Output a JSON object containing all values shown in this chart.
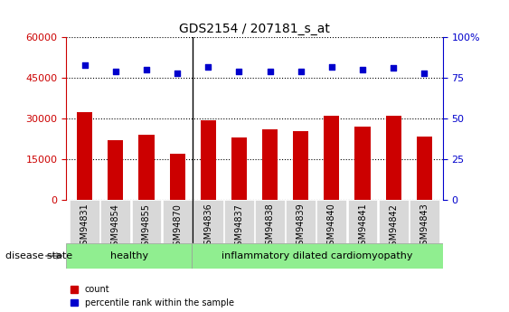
{
  "title": "GDS2154 / 207181_s_at",
  "samples": [
    "GSM94831",
    "GSM94854",
    "GSM94855",
    "GSM94870",
    "GSM94836",
    "GSM94837",
    "GSM94838",
    "GSM94839",
    "GSM94840",
    "GSM94841",
    "GSM94842",
    "GSM94843"
  ],
  "counts": [
    32500,
    22000,
    24000,
    17000,
    29500,
    23000,
    26000,
    25500,
    31000,
    27000,
    31000,
    23500
  ],
  "percentiles": [
    83,
    79,
    80,
    78,
    82,
    79,
    79,
    79,
    82,
    80,
    81,
    78
  ],
  "bar_color": "#cc0000",
  "dot_color": "#0000cc",
  "n_healthy": 4,
  "n_disease": 8,
  "healthy_label": "healthy",
  "disease_label": "inflammatory dilated cardiomyopathy",
  "disease_state_label": "disease state",
  "legend_count": "count",
  "legend_pct": "percentile rank within the sample",
  "left_ylim": [
    0,
    60000
  ],
  "left_yticks": [
    0,
    15000,
    30000,
    45000,
    60000
  ],
  "right_ylim": [
    0,
    100
  ],
  "right_yticks": [
    0,
    25,
    50,
    75,
    100
  ],
  "left_color": "#cc0000",
  "right_color": "#0000cc",
  "plot_bg": "#ffffff",
  "grid_color": "#000000",
  "healthy_bg": "#90ee90",
  "disease_bg": "#90ee90",
  "tick_bg": "#d8d8d8",
  "bar_width": 0.5
}
